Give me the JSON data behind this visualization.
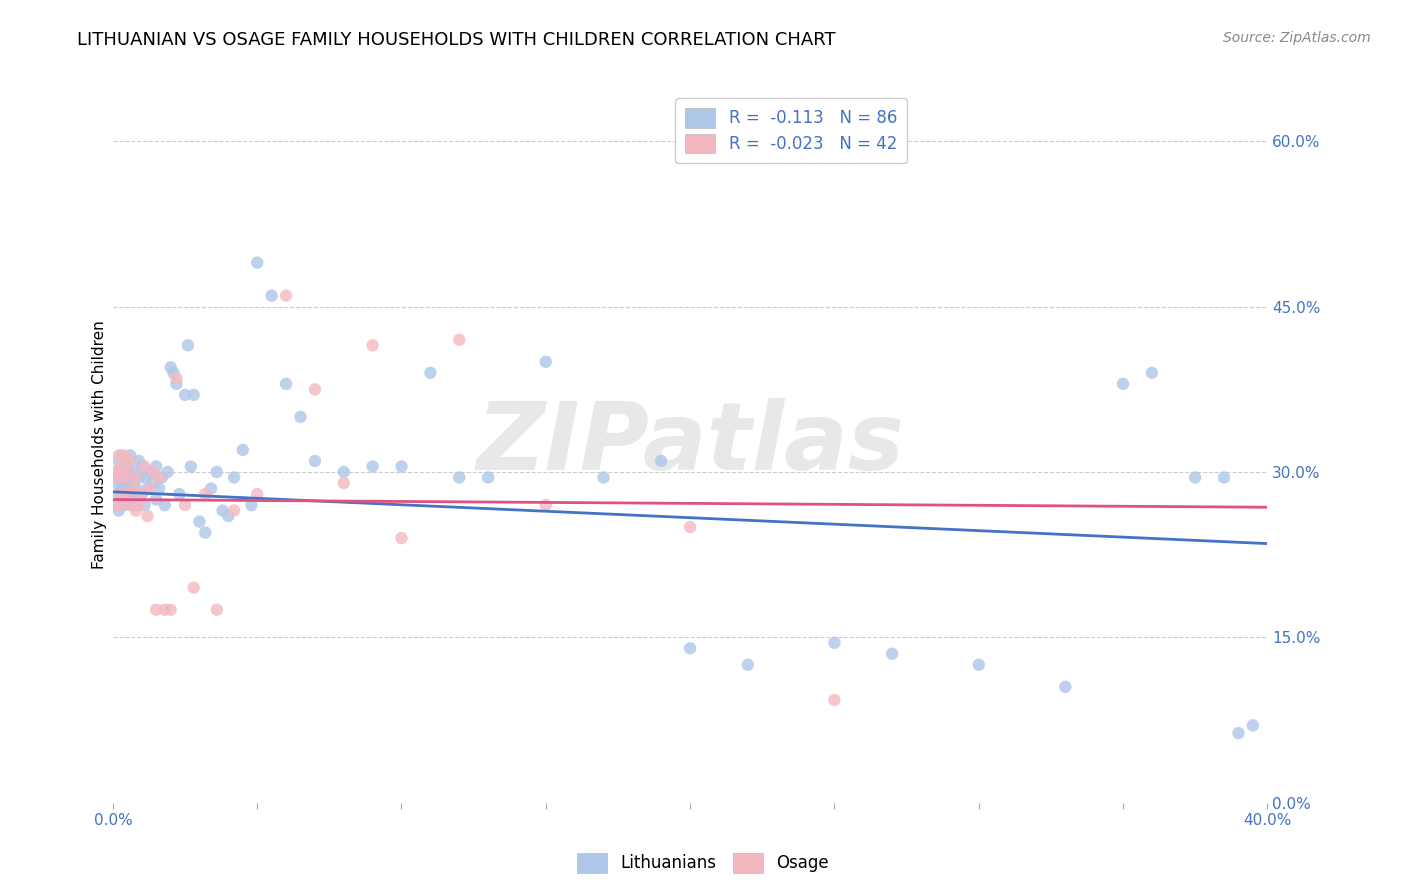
{
  "title": "LITHUANIAN VS OSAGE FAMILY HOUSEHOLDS WITH CHILDREN CORRELATION CHART",
  "source": "Source: ZipAtlas.com",
  "ylabel": "Family Households with Children",
  "watermark": "ZIPatlas",
  "legend_entries": [
    {
      "label": "R =  -0.113   N = 86",
      "color": "#aec6e8"
    },
    {
      "label": "R =  -0.023   N = 42",
      "color": "#f4b8c1"
    }
  ],
  "legend_labels": [
    "Lithuanians",
    "Osage"
  ],
  "xlim": [
    0.0,
    0.4
  ],
  "ylim": [
    0.0,
    0.65
  ],
  "xticks": [
    0.0,
    0.05,
    0.1,
    0.15,
    0.2,
    0.25,
    0.3,
    0.35,
    0.4
  ],
  "yticks_right": [
    0.0,
    0.15,
    0.3,
    0.45,
    0.6
  ],
  "ytick_labels_right": [
    "0.0%",
    "15.0%",
    "30.0%",
    "45.0%",
    "60.0%"
  ],
  "xtick_labels": [
    "0.0%",
    "",
    "",
    "",
    "",
    "",
    "",
    "",
    "40.0%"
  ],
  "grid_color": "#cccccc",
  "background_color": "#ffffff",
  "scatter_blue_color": "#aec6e8",
  "scatter_pink_color": "#f4b8c1",
  "line_blue_color": "#4472c4",
  "line_pink_color": "#e05080",
  "scatter_size": 80,
  "scatter_alpha": 0.8,
  "title_fontsize": 13,
  "axis_label_fontsize": 11,
  "tick_fontsize": 11,
  "source_fontsize": 10,
  "blue_line_start_y": 0.282,
  "blue_line_end_y": 0.235,
  "pink_line_start_y": 0.275,
  "pink_line_end_y": 0.268,
  "blue_points_x": [
    0.001,
    0.001,
    0.001,
    0.002,
    0.002,
    0.002,
    0.002,
    0.003,
    0.003,
    0.003,
    0.003,
    0.003,
    0.004,
    0.004,
    0.004,
    0.004,
    0.005,
    0.005,
    0.005,
    0.005,
    0.006,
    0.006,
    0.006,
    0.007,
    0.007,
    0.007,
    0.008,
    0.008,
    0.009,
    0.009,
    0.01,
    0.01,
    0.011,
    0.011,
    0.012,
    0.013,
    0.014,
    0.015,
    0.015,
    0.016,
    0.017,
    0.018,
    0.019,
    0.02,
    0.021,
    0.022,
    0.023,
    0.025,
    0.026,
    0.027,
    0.028,
    0.03,
    0.032,
    0.034,
    0.036,
    0.038,
    0.04,
    0.042,
    0.045,
    0.048,
    0.05,
    0.055,
    0.06,
    0.065,
    0.07,
    0.08,
    0.09,
    0.1,
    0.11,
    0.12,
    0.13,
    0.15,
    0.17,
    0.19,
    0.2,
    0.22,
    0.25,
    0.27,
    0.3,
    0.33,
    0.35,
    0.36,
    0.375,
    0.385,
    0.39,
    0.395
  ],
  "blue_points_y": [
    0.3,
    0.27,
    0.29,
    0.31,
    0.28,
    0.265,
    0.295,
    0.285,
    0.305,
    0.275,
    0.295,
    0.315,
    0.27,
    0.29,
    0.31,
    0.28,
    0.3,
    0.275,
    0.29,
    0.305,
    0.28,
    0.295,
    0.315,
    0.27,
    0.29,
    0.3,
    0.285,
    0.275,
    0.31,
    0.295,
    0.28,
    0.305,
    0.27,
    0.295,
    0.285,
    0.3,
    0.29,
    0.275,
    0.305,
    0.285,
    0.295,
    0.27,
    0.3,
    0.395,
    0.39,
    0.38,
    0.28,
    0.37,
    0.415,
    0.305,
    0.37,
    0.255,
    0.245,
    0.285,
    0.3,
    0.265,
    0.26,
    0.295,
    0.32,
    0.27,
    0.49,
    0.46,
    0.38,
    0.35,
    0.31,
    0.3,
    0.305,
    0.305,
    0.39,
    0.295,
    0.295,
    0.4,
    0.295,
    0.31,
    0.14,
    0.125,
    0.145,
    0.135,
    0.125,
    0.105,
    0.38,
    0.39,
    0.295,
    0.295,
    0.063,
    0.07
  ],
  "pink_points_x": [
    0.001,
    0.001,
    0.002,
    0.002,
    0.003,
    0.003,
    0.003,
    0.004,
    0.004,
    0.005,
    0.005,
    0.006,
    0.006,
    0.007,
    0.008,
    0.008,
    0.009,
    0.01,
    0.011,
    0.012,
    0.013,
    0.014,
    0.015,
    0.016,
    0.018,
    0.02,
    0.022,
    0.025,
    0.028,
    0.032,
    0.036,
    0.042,
    0.05,
    0.06,
    0.07,
    0.08,
    0.09,
    0.1,
    0.12,
    0.15,
    0.2,
    0.25
  ],
  "pink_points_y": [
    0.3,
    0.27,
    0.295,
    0.315,
    0.28,
    0.305,
    0.27,
    0.295,
    0.315,
    0.28,
    0.3,
    0.27,
    0.31,
    0.285,
    0.265,
    0.295,
    0.27,
    0.28,
    0.305,
    0.26,
    0.285,
    0.3,
    0.175,
    0.295,
    0.175,
    0.175,
    0.385,
    0.27,
    0.195,
    0.28,
    0.175,
    0.265,
    0.28,
    0.46,
    0.375,
    0.29,
    0.415,
    0.24,
    0.42,
    0.27,
    0.25,
    0.093
  ]
}
